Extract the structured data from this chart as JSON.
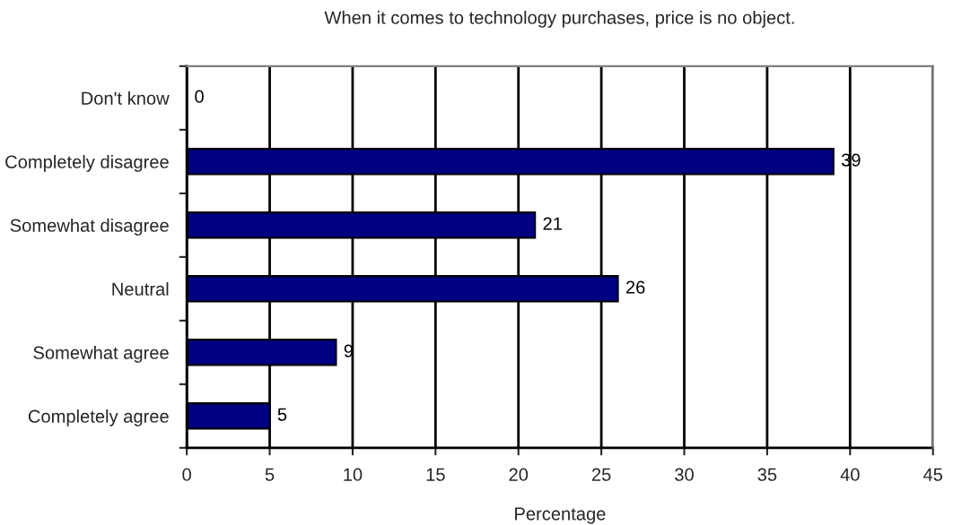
{
  "chart_data": {
    "type": "bar",
    "orientation": "horizontal",
    "title": "When it comes to technology purchases, price is no object.",
    "xlabel": "Percentage",
    "categories": [
      "Don't know",
      "Completely disagree",
      "Somewhat disagree",
      "Neutral",
      "Somewhat agree",
      "Completely agree"
    ],
    "values": [
      0,
      39,
      21,
      26,
      9,
      5
    ],
    "color": "#000080",
    "xlim": [
      0,
      45
    ],
    "xticks": [
      0,
      5,
      10,
      15,
      20,
      25,
      30,
      35,
      40,
      45
    ],
    "grid": "x",
    "data_labels": true
  }
}
